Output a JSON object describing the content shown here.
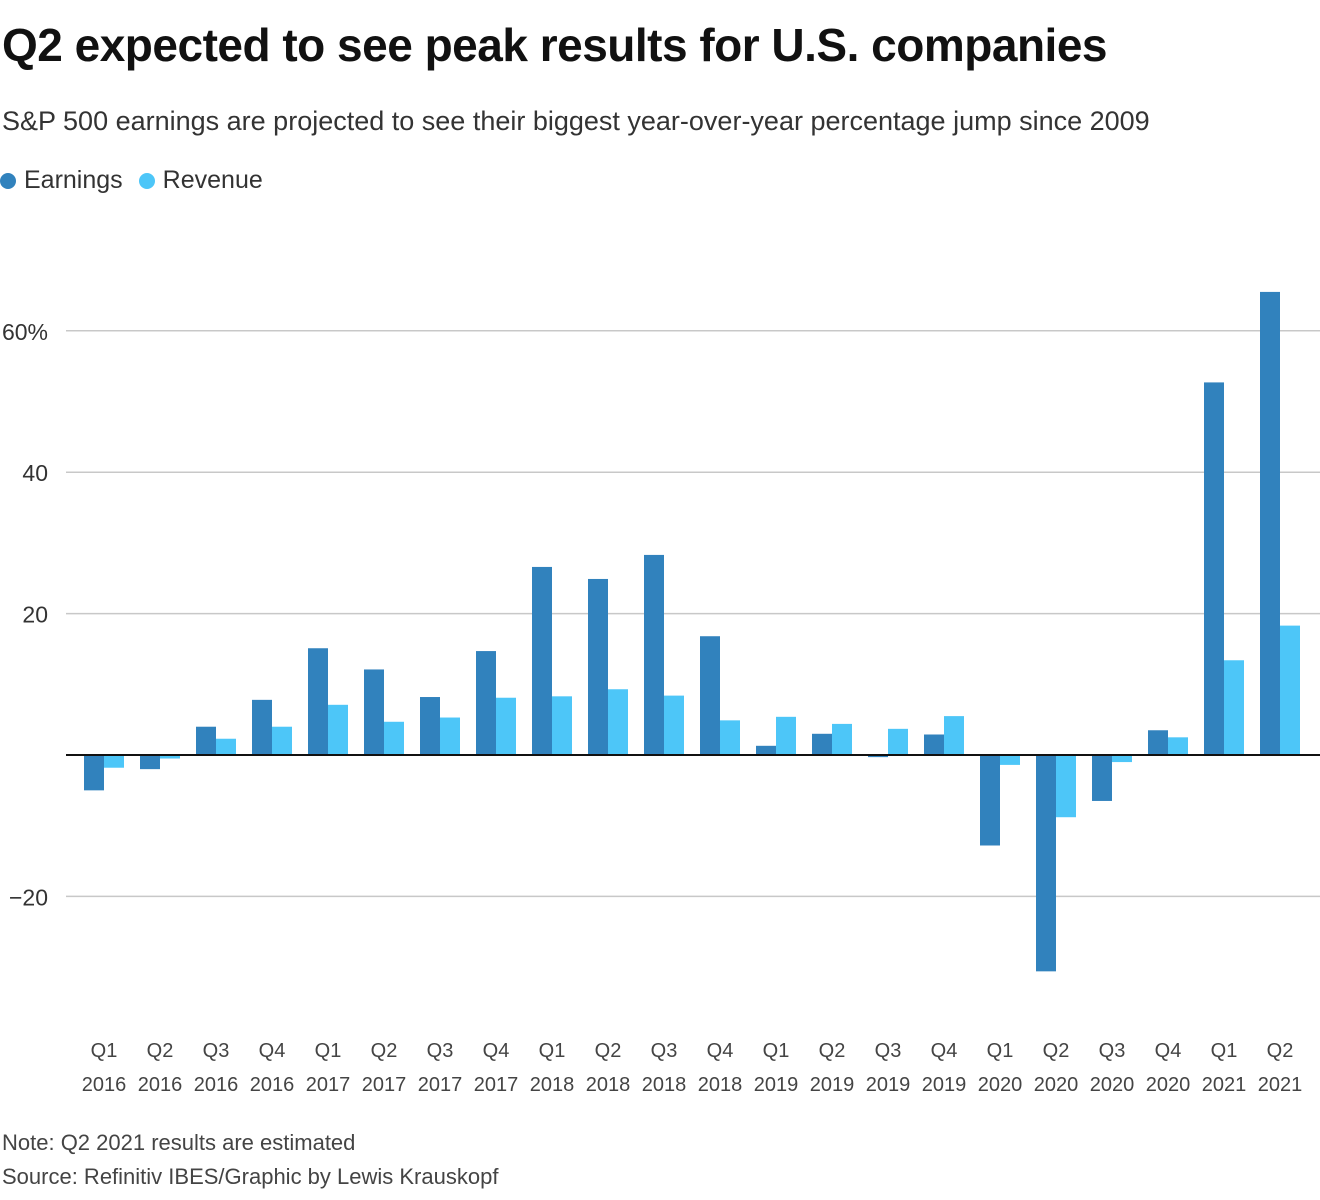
{
  "title": "Q2 expected to see peak results for U.S. companies",
  "subtitle": "S&P 500 earnings are projected to see their biggest year-over-year percentage jump since 2009",
  "legend": [
    {
      "label": "Earnings",
      "color": "#3182bd"
    },
    {
      "label": "Revenue",
      "color": "#4dc6f8"
    }
  ],
  "note": "Note: Q2 2021 results are estimated",
  "source": "Source: Refinitiv IBES/Graphic by Lewis Krauskopf",
  "chart_data": {
    "type": "bar",
    "title": "Q2 expected to see peak results for U.S. companies",
    "xlabel": "",
    "ylabel": "",
    "ylim": [
      -35,
      70
    ],
    "yticks": [
      -20,
      20,
      40,
      60
    ],
    "ytick_labels": [
      "−20",
      "20",
      "40",
      "60%"
    ],
    "grid": true,
    "legend_position": "top-left",
    "categories": [
      {
        "quarter": "Q1",
        "year": "2016"
      },
      {
        "quarter": "Q2",
        "year": "2016"
      },
      {
        "quarter": "Q3",
        "year": "2016"
      },
      {
        "quarter": "Q4",
        "year": "2016"
      },
      {
        "quarter": "Q1",
        "year": "2017"
      },
      {
        "quarter": "Q2",
        "year": "2017"
      },
      {
        "quarter": "Q3",
        "year": "2017"
      },
      {
        "quarter": "Q4",
        "year": "2017"
      },
      {
        "quarter": "Q1",
        "year": "2018"
      },
      {
        "quarter": "Q2",
        "year": "2018"
      },
      {
        "quarter": "Q3",
        "year": "2018"
      },
      {
        "quarter": "Q4",
        "year": "2018"
      },
      {
        "quarter": "Q1",
        "year": "2019"
      },
      {
        "quarter": "Q2",
        "year": "2019"
      },
      {
        "quarter": "Q3",
        "year": "2019"
      },
      {
        "quarter": "Q4",
        "year": "2019"
      },
      {
        "quarter": "Q1",
        "year": "2020"
      },
      {
        "quarter": "Q2",
        "year": "2020"
      },
      {
        "quarter": "Q3",
        "year": "2020"
      },
      {
        "quarter": "Q4",
        "year": "2020"
      },
      {
        "quarter": "Q1",
        "year": "2021"
      },
      {
        "quarter": "Q2",
        "year": "2021"
      }
    ],
    "series": [
      {
        "name": "Earnings",
        "color": "#3182bd",
        "values": [
          -5.0,
          -2.0,
          4.0,
          7.8,
          15.1,
          12.1,
          8.2,
          14.7,
          26.6,
          24.9,
          28.3,
          16.8,
          1.3,
          3.0,
          -0.3,
          2.9,
          -12.8,
          -30.6,
          -6.5,
          3.5,
          52.7,
          65.5
        ]
      },
      {
        "name": "Revenue",
        "color": "#4dc6f8",
        "values": [
          -1.8,
          -0.5,
          2.3,
          4.0,
          7.1,
          4.7,
          5.3,
          8.1,
          8.3,
          9.3,
          8.4,
          4.9,
          5.4,
          4.4,
          3.7,
          5.5,
          -1.4,
          -8.8,
          -1.0,
          2.5,
          13.4,
          18.3
        ]
      }
    ]
  }
}
